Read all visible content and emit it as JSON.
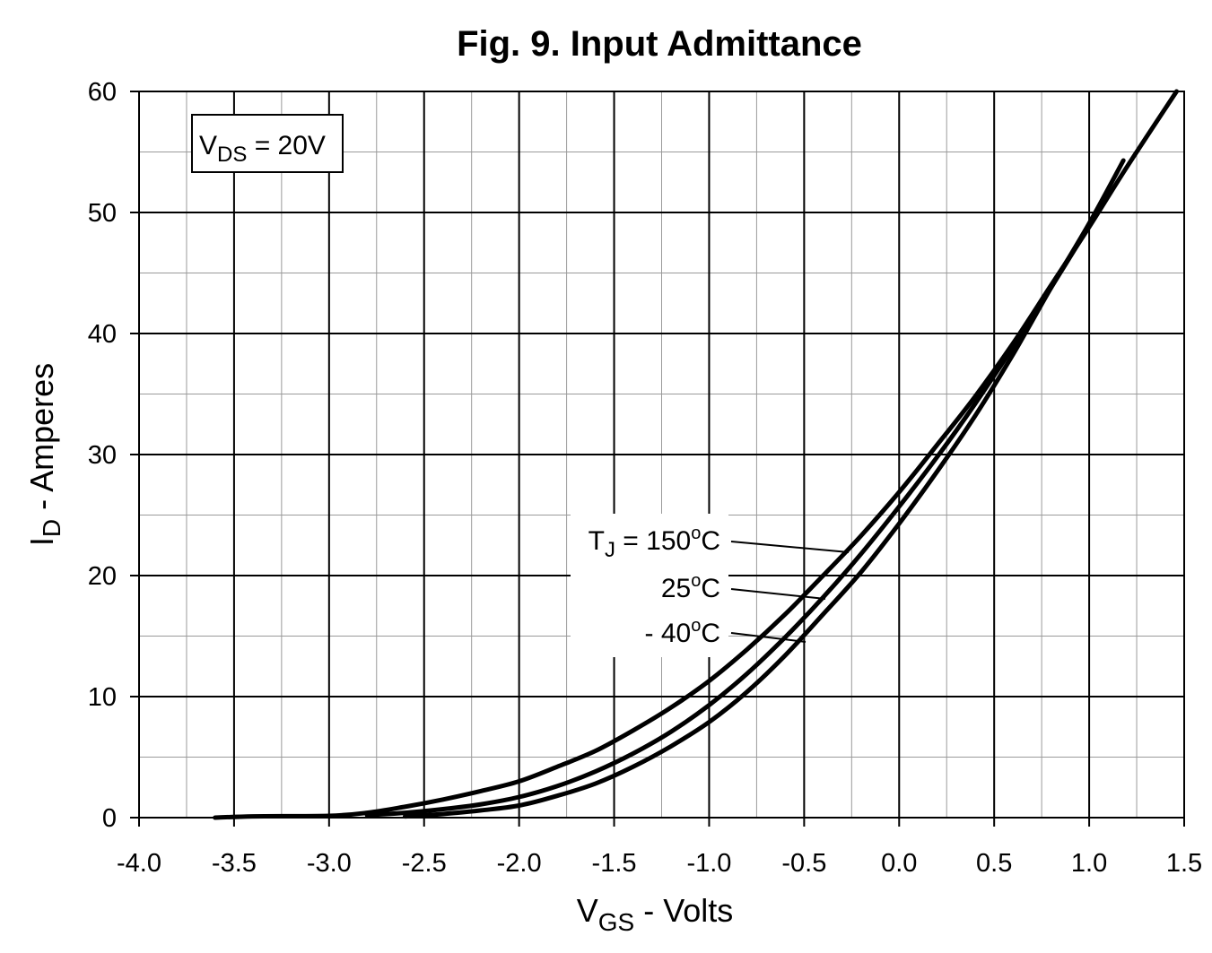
{
  "chart_data": {
    "type": "line",
    "title": "Fig. 9. Input Admittance",
    "xlabel": {
      "main": "V",
      "sub": "GS",
      "rest": " - Volts"
    },
    "ylabel": {
      "main": "I",
      "sub": "D",
      "rest": " - Amperes"
    },
    "xlim": [
      -4.0,
      1.5
    ],
    "ylim": [
      0,
      60
    ],
    "x_major_step": 0.5,
    "x_minor_step": 0.25,
    "y_major_step": 10,
    "y_minor_step": 5,
    "x_tick_labels": [
      "-4.0",
      "-3.5",
      "-3.0",
      "-2.5",
      "-2.0",
      "-1.5",
      "-1.0",
      "-0.5",
      "0.0",
      "0.5",
      "1.0",
      "1.5"
    ],
    "y_tick_labels": [
      "0",
      "10",
      "20",
      "30",
      "40",
      "50",
      "60"
    ],
    "grid": true,
    "condition": {
      "main": "V",
      "sub": "DS",
      "rest": " = 20V"
    },
    "series_labels": [
      {
        "pre": "T",
        "sub": "J",
        "mid": " = 150",
        "sup": "o",
        "post": "C"
      },
      {
        "pre": "25",
        "sub": "",
        "mid": "",
        "sup": "o",
        "post": "C"
      },
      {
        "pre": "- 40",
        "sub": "",
        "mid": "",
        "sup": "o",
        "post": "C"
      }
    ],
    "series": [
      {
        "x": [
          -3.6,
          -3.4,
          -3.0,
          -2.8,
          -2.6,
          -2.4,
          -2.2,
          -2.0,
          -1.8,
          -1.6,
          -1.4,
          -1.2,
          -1.0,
          -0.8,
          -0.6,
          -0.4,
          -0.2,
          0.0,
          0.2,
          0.4,
          0.6,
          0.8,
          1.0,
          1.2,
          1.46
        ],
        "values": [
          0.0,
          0.1,
          0.15,
          0.4,
          0.9,
          1.5,
          2.2,
          3.0,
          4.2,
          5.5,
          7.2,
          9.1,
          11.3,
          13.9,
          16.8,
          20.0,
          23.3,
          26.9,
          30.8,
          34.8,
          39.2,
          44.0,
          48.8,
          53.8,
          60.0
        ]
      },
      {
        "x": [
          -2.8,
          -2.6,
          -2.4,
          -2.2,
          -2.0,
          -1.8,
          -1.6,
          -1.4,
          -1.2,
          -1.0,
          -0.8,
          -0.6,
          -0.4,
          -0.2,
          0.0,
          0.2,
          0.4,
          0.6,
          0.8,
          1.0,
          1.1
        ],
        "values": [
          0.2,
          0.4,
          0.7,
          1.1,
          1.7,
          2.6,
          3.8,
          5.3,
          7.1,
          9.3,
          11.9,
          14.9,
          18.2,
          21.8,
          25.7,
          29.8,
          34.2,
          38.9,
          43.8,
          48.9,
          51.5
        ]
      },
      {
        "x": [
          -2.6,
          -2.4,
          -2.2,
          -2.0,
          -1.8,
          -1.6,
          -1.4,
          -1.2,
          -1.0,
          -0.8,
          -0.6,
          -0.4,
          -0.2,
          0.0,
          0.2,
          0.4,
          0.6,
          0.8,
          1.0,
          1.18
        ],
        "values": [
          0.1,
          0.3,
          0.6,
          1.0,
          1.8,
          2.8,
          4.2,
          5.9,
          7.9,
          10.4,
          13.4,
          16.8,
          20.3,
          24.3,
          28.6,
          33.2,
          38.3,
          43.8,
          49.1,
          54.3
        ]
      }
    ]
  }
}
